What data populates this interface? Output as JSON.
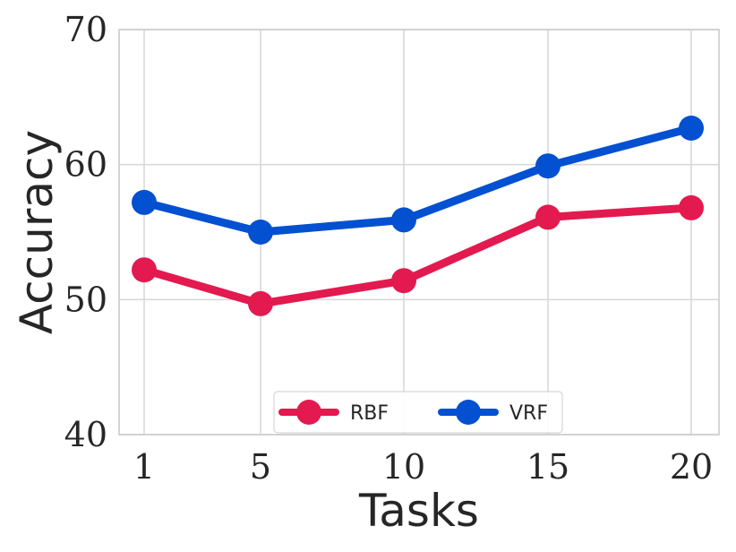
{
  "chart_data": {
    "type": "line",
    "title": "",
    "xlabel": "Tasks",
    "ylabel": "Accuracy",
    "categories": [
      "1",
      "5",
      "10",
      "15",
      "20"
    ],
    "ylim": [
      40,
      70
    ],
    "yticks": [
      "40",
      "50",
      "60",
      "70"
    ],
    "grid": true,
    "legend_position": "bottom-center",
    "series": [
      {
        "name": "RBF",
        "color": "#e31a4f",
        "values": [
          52.2,
          49.7,
          51.4,
          56.1,
          56.8
        ]
      },
      {
        "name": "VRF",
        "color": "#0350d1",
        "values": [
          57.2,
          55.0,
          55.9,
          59.9,
          62.7
        ]
      }
    ]
  }
}
